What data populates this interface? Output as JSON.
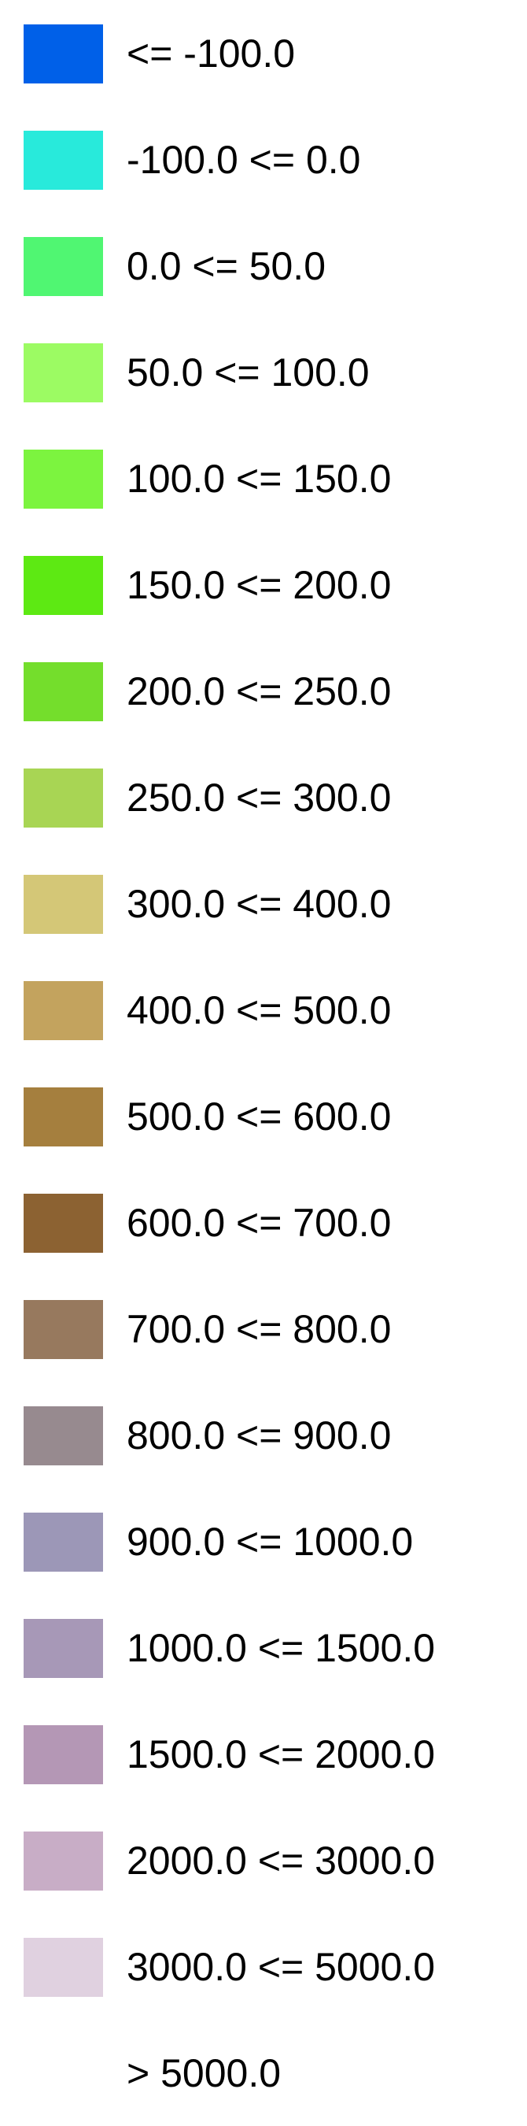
{
  "legend": {
    "items": [
      {
        "label": "<= -100.0",
        "color": "#0060e8"
      },
      {
        "label": "-100.0 <= 0.0",
        "color": "#28eadb"
      },
      {
        "label": "0.0 <= 50.0",
        "color": "#50f672"
      },
      {
        "label": "50.0 <= 100.0",
        "color": "#9cfb63"
      },
      {
        "label": "100.0 <= 150.0",
        "color": "#7cf43f"
      },
      {
        "label": "150.0 <= 200.0",
        "color": "#5de913"
      },
      {
        "label": "200.0 <= 250.0",
        "color": "#74de2c"
      },
      {
        "label": "250.0 <= 300.0",
        "color": "#a8d554"
      },
      {
        "label": "300.0 <= 400.0",
        "color": "#d4c777"
      },
      {
        "label": "400.0 <= 500.0",
        "color": "#c3a35e"
      },
      {
        "label": "500.0 <= 600.0",
        "color": "#a57f3e"
      },
      {
        "label": "600.0 <= 700.0",
        "color": "#8c6232"
      },
      {
        "label": "700.0 <= 800.0",
        "color": "#97795e"
      },
      {
        "label": "800.0 <= 900.0",
        "color": "#978a8f"
      },
      {
        "label": "900.0 <= 1000.0",
        "color": "#9c97b7"
      },
      {
        "label": "1000.0 <= 1500.0",
        "color": "#a798b7"
      },
      {
        "label": "1500.0 <= 2000.0",
        "color": "#b497b5"
      },
      {
        "label": "2000.0 <= 3000.0",
        "color": "#c8adc6"
      },
      {
        "label": "3000.0 <= 5000.0",
        "color": "#e0d1e0"
      },
      {
        "label": "> 5000.0",
        "color": "#ffffff"
      }
    ]
  }
}
